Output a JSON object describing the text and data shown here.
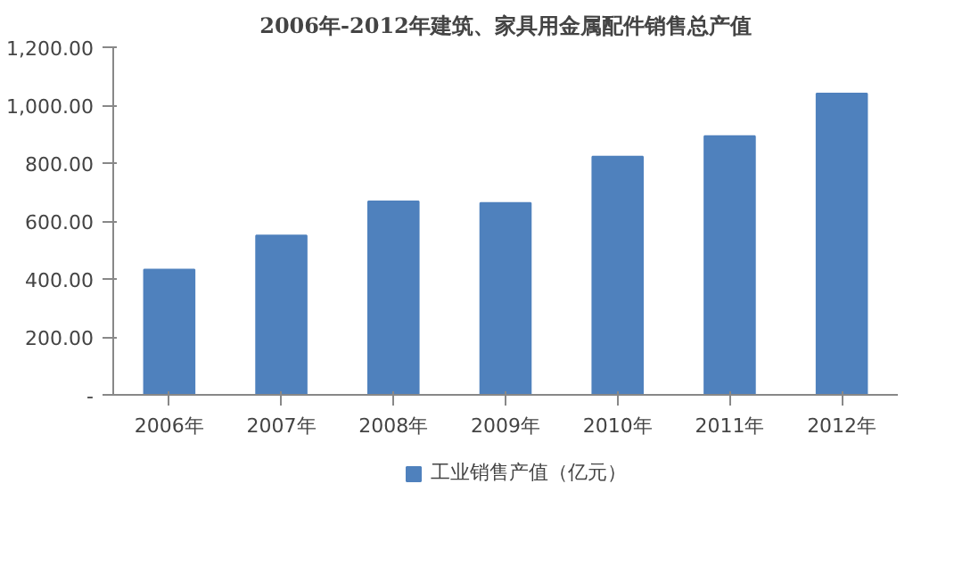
{
  "chart_data": {
    "type": "bar",
    "title": "2006年-2012年建筑、家具用金属配件销售总产值",
    "categories": [
      "2006年",
      "2007年",
      "2008年",
      "2009年",
      "2010年",
      "2011年",
      "2012年"
    ],
    "series": [
      {
        "name": "工业销售产值（亿元）",
        "color": "#4f81bd",
        "values": [
          432,
          550,
          668,
          662,
          822,
          893,
          1040
        ]
      }
    ],
    "ylim": [
      0,
      1200
    ],
    "yticks": [
      {
        "value": 0,
        "label": "-"
      },
      {
        "value": 200,
        "label": "200.00"
      },
      {
        "value": 400,
        "label": "400.00"
      },
      {
        "value": 600,
        "label": "600.00"
      },
      {
        "value": 800,
        "label": "800.00"
      },
      {
        "value": 1000,
        "label": "1,000.00"
      },
      {
        "value": 1200,
        "label": "1,200.00"
      }
    ],
    "grid": false,
    "legend": "bottom"
  }
}
